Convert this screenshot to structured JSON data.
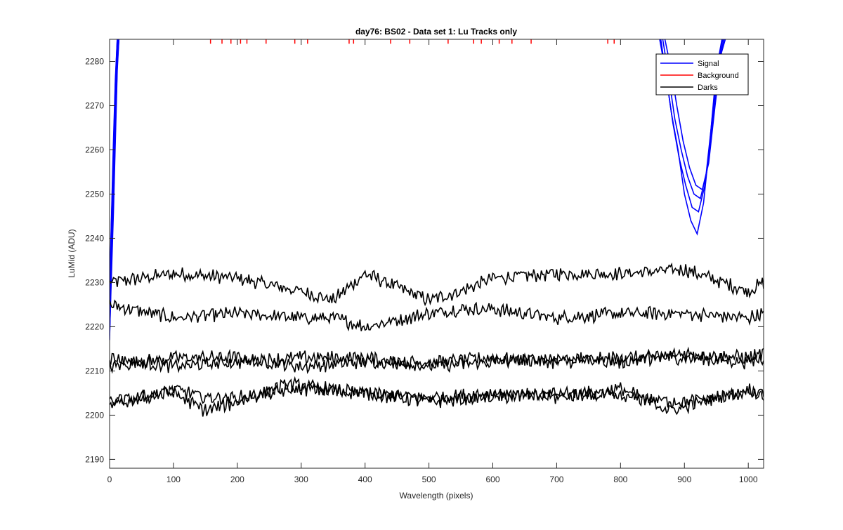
{
  "chart_data": {
    "type": "line",
    "title": "day76: BS02 - Data set 1: Lu Tracks only",
    "xlabel": "Wavelength (pixels)",
    "ylabel": "LuMid (ADU)",
    "xlim": [
      0,
      1024
    ],
    "ylim": [
      2188,
      2285
    ],
    "xticks": [
      0,
      100,
      200,
      300,
      400,
      500,
      600,
      700,
      800,
      900,
      1000
    ],
    "yticks": [
      2190,
      2200,
      2210,
      2220,
      2230,
      2240,
      2250,
      2260,
      2270,
      2280
    ],
    "grid": false,
    "legend_position": "top-right",
    "legend": [
      {
        "label": "Signal",
        "color": "#0000ff"
      },
      {
        "label": "Background",
        "color": "#ff0000"
      },
      {
        "label": "Darks",
        "color": "#000000"
      }
    ],
    "series": [
      {
        "name": "Signal",
        "color": "#0000ff",
        "segments": [
          {
            "x": [
              0,
              2,
              4,
              6,
              8,
              10,
              12,
              14
            ],
            "y": [
              2217,
              2230,
              2240,
              2250,
              2262,
              2272,
              2282,
              2286
            ]
          },
          {
            "x": [
              0,
              3,
              6,
              9,
              12,
              15
            ],
            "y": [
              2221,
              2236,
              2252,
              2268,
              2281,
              2286
            ]
          },
          {
            "x": [
              0,
              3,
              6,
              9,
              12,
              15
            ],
            "y": [
              2224,
              2240,
              2256,
              2272,
              2283,
              2286
            ]
          },
          {
            "x": [
              0,
              3,
              6,
              9,
              12,
              15
            ],
            "y": [
              2219,
              2234,
              2248,
              2264,
              2279,
              2286
            ]
          },
          {
            "x": [
              0,
              3,
              6,
              9,
              12,
              15
            ],
            "y": [
              2226,
              2243,
              2259,
              2274,
              2284,
              2286
            ]
          },
          {
            "x": [
              0,
              3,
              6,
              9,
              12,
              15
            ],
            "y": [
              2222,
              2238,
              2254,
              2270,
              2282,
              2286
            ]
          },
          {
            "x": [
              0,
              3,
              6,
              9,
              12,
              15
            ],
            "y": [
              2228,
              2245,
              2262,
              2276,
              2285,
              2286
            ]
          },
          {
            "x": [
              0,
              3,
              6,
              9,
              12,
              15
            ],
            "y": [
              2218,
              2232,
              2246,
              2262,
              2278,
              2286
            ]
          },
          {
            "x": [
              0,
              3,
              6,
              9,
              12,
              15
            ],
            "y": [
              2225,
              2242,
              2258,
              2273,
              2284,
              2286
            ]
          },
          {
            "x": [
              0,
              3,
              6,
              9,
              12,
              15
            ],
            "y": [
              2220,
              2236,
              2251,
              2266,
              2280,
              2286
            ]
          },
          {
            "x": [
              0,
              3,
              6,
              9,
              12,
              15
            ],
            "y": [
              2227,
              2244,
              2260,
              2275,
              2285,
              2286
            ]
          },
          {
            "x": [
              0,
              3,
              6,
              9,
              12,
              15
            ],
            "y": [
              2223,
              2239,
              2255,
              2271,
              2283,
              2286
            ]
          },
          {
            "x": [
              860,
              870,
              880,
              890,
              900,
              910,
              920,
              930,
              940,
              950,
              960
            ],
            "y": [
              2286,
              2278,
              2268,
              2260,
              2250,
              2244,
              2241,
              2248,
              2262,
              2278,
              2286
            ]
          },
          {
            "x": [
              862,
              872,
              882,
              892,
              902,
              912,
              922,
              932,
              942,
              952,
              962
            ],
            "y": [
              2286,
              2276,
              2266,
              2258,
              2252,
              2247,
              2246,
              2252,
              2265,
              2280,
              2286
            ]
          },
          {
            "x": [
              865,
              875,
              885,
              895,
              905,
              915,
              925,
              935,
              945,
              955,
              964
            ],
            "y": [
              2286,
              2277,
              2267,
              2260,
              2254,
              2250,
              2249,
              2255,
              2268,
              2281,
              2286
            ]
          },
          {
            "x": [
              868,
              878,
              888,
              898,
              908,
              918,
              928,
              938,
              948,
              958,
              966
            ],
            "y": [
              2286,
              2279,
              2270,
              2262,
              2256,
              2252,
              2251,
              2257,
              2270,
              2282,
              2286
            ]
          }
        ]
      },
      {
        "name": "Background",
        "color": "#ff0000",
        "ticks_x": [
          158,
          176,
          190,
          205,
          215,
          245,
          290,
          310,
          375,
          382,
          440,
          470,
          530,
          570,
          582,
          610,
          630,
          660,
          780,
          790
        ],
        "ticks_y_range": [
          2284,
          2286
        ]
      },
      {
        "name": "Darks",
        "color": "#000000",
        "traces": [
          {
            "x": [
              0,
              100,
              200,
              300,
              350,
              400,
              500,
              550,
              600,
              700,
              800,
              900,
              1000,
              1024
            ],
            "y": [
              2230,
              2232,
              2231,
              2228,
              2226,
              2232,
              2226,
              2228,
              2231,
              2232,
              2232,
              2233,
              2228,
              2230
            ]
          },
          {
            "x": [
              0,
              100,
              200,
              300,
              350,
              400,
              500,
              550,
              600,
              700,
              800,
              900,
              1000,
              1024
            ],
            "y": [
              2225,
              2222,
              2223,
              2222,
              2222,
              2220,
              2223,
              2224,
              2224,
              2222,
              2223,
              2223,
              2222,
              2223
            ]
          },
          {
            "x": [
              0,
              100,
              200,
              300,
              400,
              500,
              600,
              700,
              800,
              900,
              1000,
              1024
            ],
            "y": [
              2211,
              2213,
              2213,
              2211,
              2212,
              2212,
              2213,
              2212,
              2213,
              2213,
              2212,
              2213
            ]
          },
          {
            "x": [
              0,
              100,
              200,
              300,
              400,
              500,
              600,
              700,
              800,
              900,
              1000,
              1024
            ],
            "y": [
              2213,
              2211,
              2212,
              2213,
              2213,
              2211,
              2212,
              2213,
              2212,
              2214,
              2213,
              2214
            ]
          },
          {
            "x": [
              0,
              100,
              150,
              200,
              300,
              400,
              500,
              600,
              700,
              800,
              900,
              1000,
              1024
            ],
            "y": [
              2202,
              2206,
              2204,
              2204,
              2206,
              2205,
              2203,
              2204,
              2205,
              2204,
              2203,
              2205,
              2205
            ]
          },
          {
            "x": [
              0,
              100,
              150,
              200,
              280,
              400,
              500,
              600,
              700,
              800,
              880,
              1000,
              1024
            ],
            "y": [
              2203,
              2205,
              2201,
              2203,
              2207,
              2205,
              2204,
              2205,
              2204,
              2206,
              2201,
              2206,
              2204
            ]
          }
        ]
      }
    ]
  }
}
